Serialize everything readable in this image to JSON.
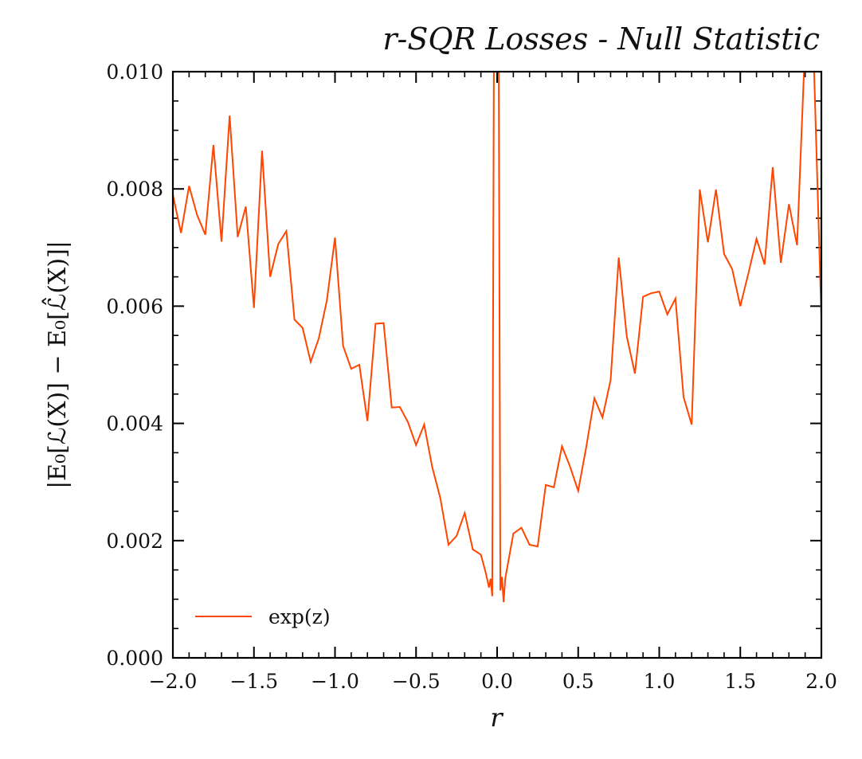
{
  "chart_data": {
    "type": "line",
    "title": "r-SQR Losses - Null Statistic",
    "xlabel": "r",
    "ylabel": "|E₀[ℒ(X)] − E₀[ℒ̂(X)]|",
    "xlim": [
      -2.0,
      2.0
    ],
    "ylim": [
      0.0,
      0.01
    ],
    "x_ticks": [
      -2.0,
      -1.5,
      -1.0,
      -0.5,
      0.0,
      0.5,
      1.0,
      1.5,
      2.0
    ],
    "x_tick_labels": [
      "−2.0",
      "−1.5",
      "−1.0",
      "−0.5",
      "0.0",
      "0.5",
      "1.0",
      "1.5",
      "2.0"
    ],
    "y_ticks": [
      0.0,
      0.002,
      0.004,
      0.006,
      0.008,
      0.01
    ],
    "y_tick_labels": [
      "0.000",
      "0.002",
      "0.004",
      "0.006",
      "0.008",
      "0.010"
    ],
    "grid": false,
    "legend_position": "lower-left",
    "series": [
      {
        "name": "exp(z)",
        "color": "#ff4500",
        "x": [
          -2.0,
          -1.95,
          -1.9,
          -1.85,
          -1.8,
          -1.75,
          -1.7,
          -1.65,
          -1.6,
          -1.55,
          -1.5,
          -1.45,
          -1.4,
          -1.35,
          -1.3,
          -1.25,
          -1.2,
          -1.15,
          -1.1,
          -1.05,
          -1.0,
          -0.95,
          -0.9,
          -0.85,
          -0.8,
          -0.75,
          -0.7,
          -0.65,
          -0.6,
          -0.55,
          -0.5,
          -0.45,
          -0.4,
          -0.35,
          -0.3,
          -0.25,
          -0.2,
          -0.15,
          -0.1,
          -0.07,
          -0.05,
          -0.04,
          -0.03,
          -0.02,
          -0.01,
          0.0,
          0.01,
          0.02,
          0.03,
          0.04,
          0.05,
          0.1,
          0.15,
          0.2,
          0.25,
          0.3,
          0.35,
          0.4,
          0.45,
          0.5,
          0.55,
          0.6,
          0.65,
          0.7,
          0.75,
          0.8,
          0.85,
          0.9,
          0.95,
          1.0,
          1.05,
          1.1,
          1.15,
          1.2,
          1.25,
          1.3,
          1.35,
          1.4,
          1.45,
          1.5,
          1.55,
          1.6,
          1.65,
          1.7,
          1.75,
          1.8,
          1.85,
          1.9,
          1.95,
          2.0
        ],
        "y": [
          0.0079,
          0.00725,
          0.00805,
          0.00755,
          0.00722,
          0.00875,
          0.0071,
          0.00925,
          0.00718,
          0.0077,
          0.00597,
          0.00865,
          0.0065,
          0.00706,
          0.00728,
          0.00577,
          0.00563,
          0.00505,
          0.00545,
          0.0061,
          0.00717,
          0.00532,
          0.00493,
          0.005,
          0.00404,
          0.0057,
          0.00571,
          0.00427,
          0.00428,
          0.00402,
          0.00363,
          0.00398,
          0.00325,
          0.00272,
          0.00193,
          0.00208,
          0.00247,
          0.00185,
          0.00176,
          0.00145,
          0.0012,
          0.00135,
          0.00105,
          0.0102,
          0.0102,
          0.0102,
          0.0102,
          0.00115,
          0.00138,
          0.00095,
          0.00135,
          0.00212,
          0.00222,
          0.00193,
          0.0019,
          0.00295,
          0.00291,
          0.00361,
          0.00326,
          0.00285,
          0.0036,
          0.00443,
          0.0041,
          0.00474,
          0.00683,
          0.00548,
          0.00485,
          0.00616,
          0.00622,
          0.00625,
          0.00586,
          0.00613,
          0.00445,
          0.00398,
          0.00799,
          0.00709,
          0.00799,
          0.00689,
          0.00663,
          0.006,
          0.00656,
          0.00715,
          0.00671,
          0.00837,
          0.00674,
          0.00774,
          0.00704,
          0.0105,
          0.0105,
          0.0058
        ]
      }
    ]
  },
  "legend": {
    "entries": [
      "exp(z)"
    ]
  },
  "colors": {
    "line": "#ff4500",
    "axes": "#000000",
    "background": "#ffffff"
  }
}
